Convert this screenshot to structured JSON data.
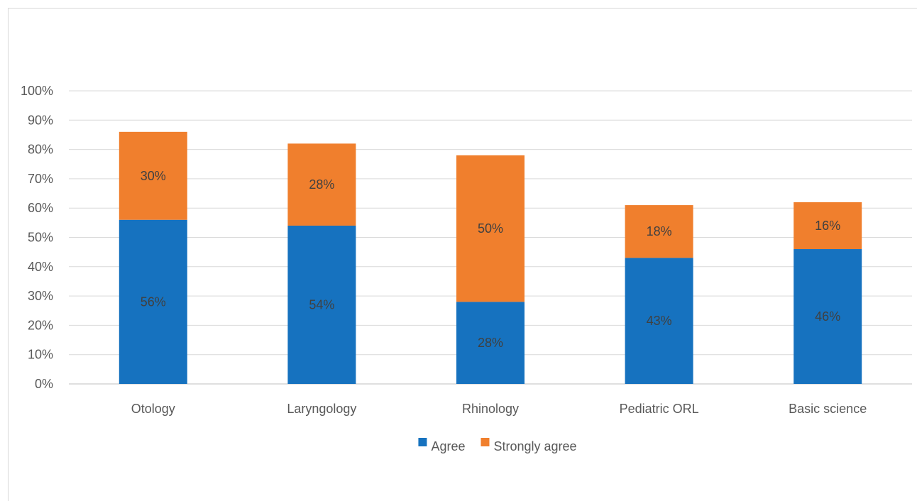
{
  "chart_data": {
    "type": "bar",
    "stacked": true,
    "title": "",
    "xlabel": "",
    "ylabel": "",
    "ylim": [
      0,
      100
    ],
    "yticks": [
      "0%",
      "10%",
      "20%",
      "30%",
      "40%",
      "50%",
      "60%",
      "70%",
      "80%",
      "90%",
      "100%"
    ],
    "grid": true,
    "legend_position": "bottom",
    "categories": [
      "Otology",
      "Laryngology",
      "Rhinology",
      "Pediatric ORL",
      "Basic science"
    ],
    "series": [
      {
        "name": "Agree",
        "color": "#1672bf",
        "values": [
          56,
          54,
          28,
          43,
          46
        ],
        "labels": [
          "56%",
          "54%",
          "28%",
          "43%",
          "46%"
        ]
      },
      {
        "name": "Strongly agree",
        "color": "#f07f2d",
        "values": [
          30,
          28,
          50,
          18,
          16
        ],
        "labels": [
          "30%",
          "28%",
          "50%",
          "18%",
          "16%"
        ]
      }
    ]
  }
}
